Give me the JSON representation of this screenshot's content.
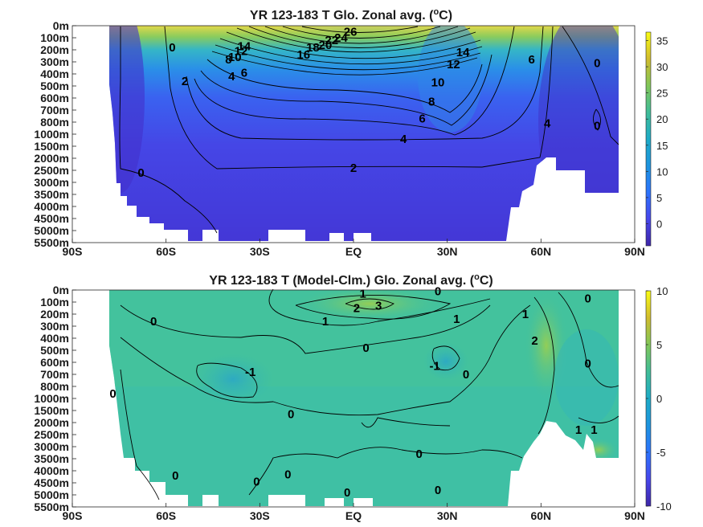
{
  "chart_data": [
    {
      "type": "heatmap",
      "title": "YR 123-183 T Glo. Zonal avg. (",
      "title_sup": "o",
      "title_end": "C)",
      "x_ticks": [
        "90S",
        "60S",
        "30S",
        "EQ",
        "30N",
        "60N",
        "90N"
      ],
      "y_ticks": [
        "0m",
        "100m",
        "200m",
        "300m",
        "400m",
        "500m",
        "600m",
        "700m",
        "800m",
        "1000m",
        "1500m",
        "2000m",
        "2500m",
        "3000m",
        "3500m",
        "4000m",
        "4500m",
        "5000m",
        "5500m"
      ],
      "colorbar": {
        "min": -3,
        "max": 36,
        "ticks": [
          "0",
          "5",
          "10",
          "15",
          "20",
          "25",
          "30",
          "35"
        ]
      },
      "contour_labels": [
        {
          "text": "26",
          "lat": -1,
          "depth": 0.5
        },
        {
          "text": "24",
          "lat": -4,
          "depth": 1
        },
        {
          "text": "22",
          "lat": -7,
          "depth": 1.2
        },
        {
          "text": "20",
          "lat": -9,
          "depth": 1.6
        },
        {
          "text": "18",
          "lat": -13,
          "depth": 1.8
        },
        {
          "text": "16",
          "lat": -16,
          "depth": 2.4
        },
        {
          "text": "14",
          "lat": -35,
          "depth": 1.7
        },
        {
          "text": "12",
          "lat": -36,
          "depth": 2.1
        },
        {
          "text": "10",
          "lat": -38,
          "depth": 2.6
        },
        {
          "text": "8",
          "lat": -40,
          "depth": 2.8
        },
        {
          "text": "6",
          "lat": -35,
          "depth": 3.9
        },
        {
          "text": "4",
          "lat": -39,
          "depth": 4.2
        },
        {
          "text": "2",
          "lat": -54,
          "depth": 4.6
        },
        {
          "text": "0",
          "lat": -58,
          "depth": 1.8
        },
        {
          "text": "0",
          "lat": -68,
          "depth": 12.2
        },
        {
          "text": "2",
          "lat": 0,
          "depth": 11.8
        },
        {
          "text": "4",
          "lat": 16,
          "depth": 9.4
        },
        {
          "text": "6",
          "lat": 22,
          "depth": 7.7
        },
        {
          "text": "8",
          "lat": 25,
          "depth": 6.3
        },
        {
          "text": "10",
          "lat": 27,
          "depth": 4.7
        },
        {
          "text": "12",
          "lat": 32,
          "depth": 3.2
        },
        {
          "text": "14",
          "lat": 35,
          "depth": 2.2
        },
        {
          "text": "6",
          "lat": 57,
          "depth": 2.8
        },
        {
          "text": "4",
          "lat": 62,
          "depth": 8.1
        },
        {
          "text": "0",
          "lat": 78,
          "depth": 3.1
        },
        {
          "text": "0",
          "lat": 78,
          "depth": 8.3
        }
      ]
    },
    {
      "type": "heatmap",
      "title": "YR 123-183 T (Model-Clm.) Glo. Zonal avg. (",
      "title_sup": "o",
      "title_end": "C)",
      "x_ticks": [
        "90S",
        "60S",
        "30S",
        "EQ",
        "30N",
        "60N",
        "90N"
      ],
      "y_ticks": [
        "0m",
        "100m",
        "200m",
        "300m",
        "400m",
        "500m",
        "600m",
        "700m",
        "800m",
        "1000m",
        "1500m",
        "2000m",
        "2500m",
        "3000m",
        "3500m",
        "4000m",
        "4500m",
        "5000m",
        "5500m"
      ],
      "colorbar": {
        "min": -10,
        "max": 10,
        "ticks": [
          "-10",
          "-5",
          "0",
          "5",
          "10"
        ]
      },
      "contour_labels": [
        {
          "text": "1",
          "lat": 3,
          "depth": 0.3
        },
        {
          "text": "0",
          "lat": 27,
          "depth": 0.1
        },
        {
          "text": "2",
          "lat": 1,
          "depth": 1.5
        },
        {
          "text": "3",
          "lat": 8,
          "depth": 1.3
        },
        {
          "text": "1",
          "lat": -9,
          "depth": 2.6
        },
        {
          "text": "1",
          "lat": 33,
          "depth": 2.4
        },
        {
          "text": "1",
          "lat": 55,
          "depth": 2
        },
        {
          "text": "0",
          "lat": 75,
          "depth": 0.7
        },
        {
          "text": "0",
          "lat": -64,
          "depth": 2.6
        },
        {
          "text": "0",
          "lat": 4,
          "depth": 4.8
        },
        {
          "text": "2",
          "lat": 58,
          "depth": 4.2
        },
        {
          "text": "-1",
          "lat": -33,
          "depth": 6.8
        },
        {
          "text": "-1",
          "lat": 26,
          "depth": 6.3
        },
        {
          "text": "0",
          "lat": 36,
          "depth": 7
        },
        {
          "text": "0",
          "lat": 75,
          "depth": 6.1
        },
        {
          "text": "0",
          "lat": -77,
          "depth": 8.6
        },
        {
          "text": "0",
          "lat": -20,
          "depth": 10.3
        },
        {
          "text": "1",
          "lat": 72,
          "depth": 11.6
        },
        {
          "text": "1",
          "lat": 77,
          "depth": 11.6
        },
        {
          "text": "0",
          "lat": 21,
          "depth": 13.6
        },
        {
          "text": "0",
          "lat": -57,
          "depth": 15.4
        },
        {
          "text": "0",
          "lat": -21,
          "depth": 15.3
        },
        {
          "text": "0",
          "lat": -31,
          "depth": 15.9
        },
        {
          "text": "0",
          "lat": -2,
          "depth": 16.8
        },
        {
          "text": "0",
          "lat": 27,
          "depth": 16.6
        }
      ]
    }
  ]
}
